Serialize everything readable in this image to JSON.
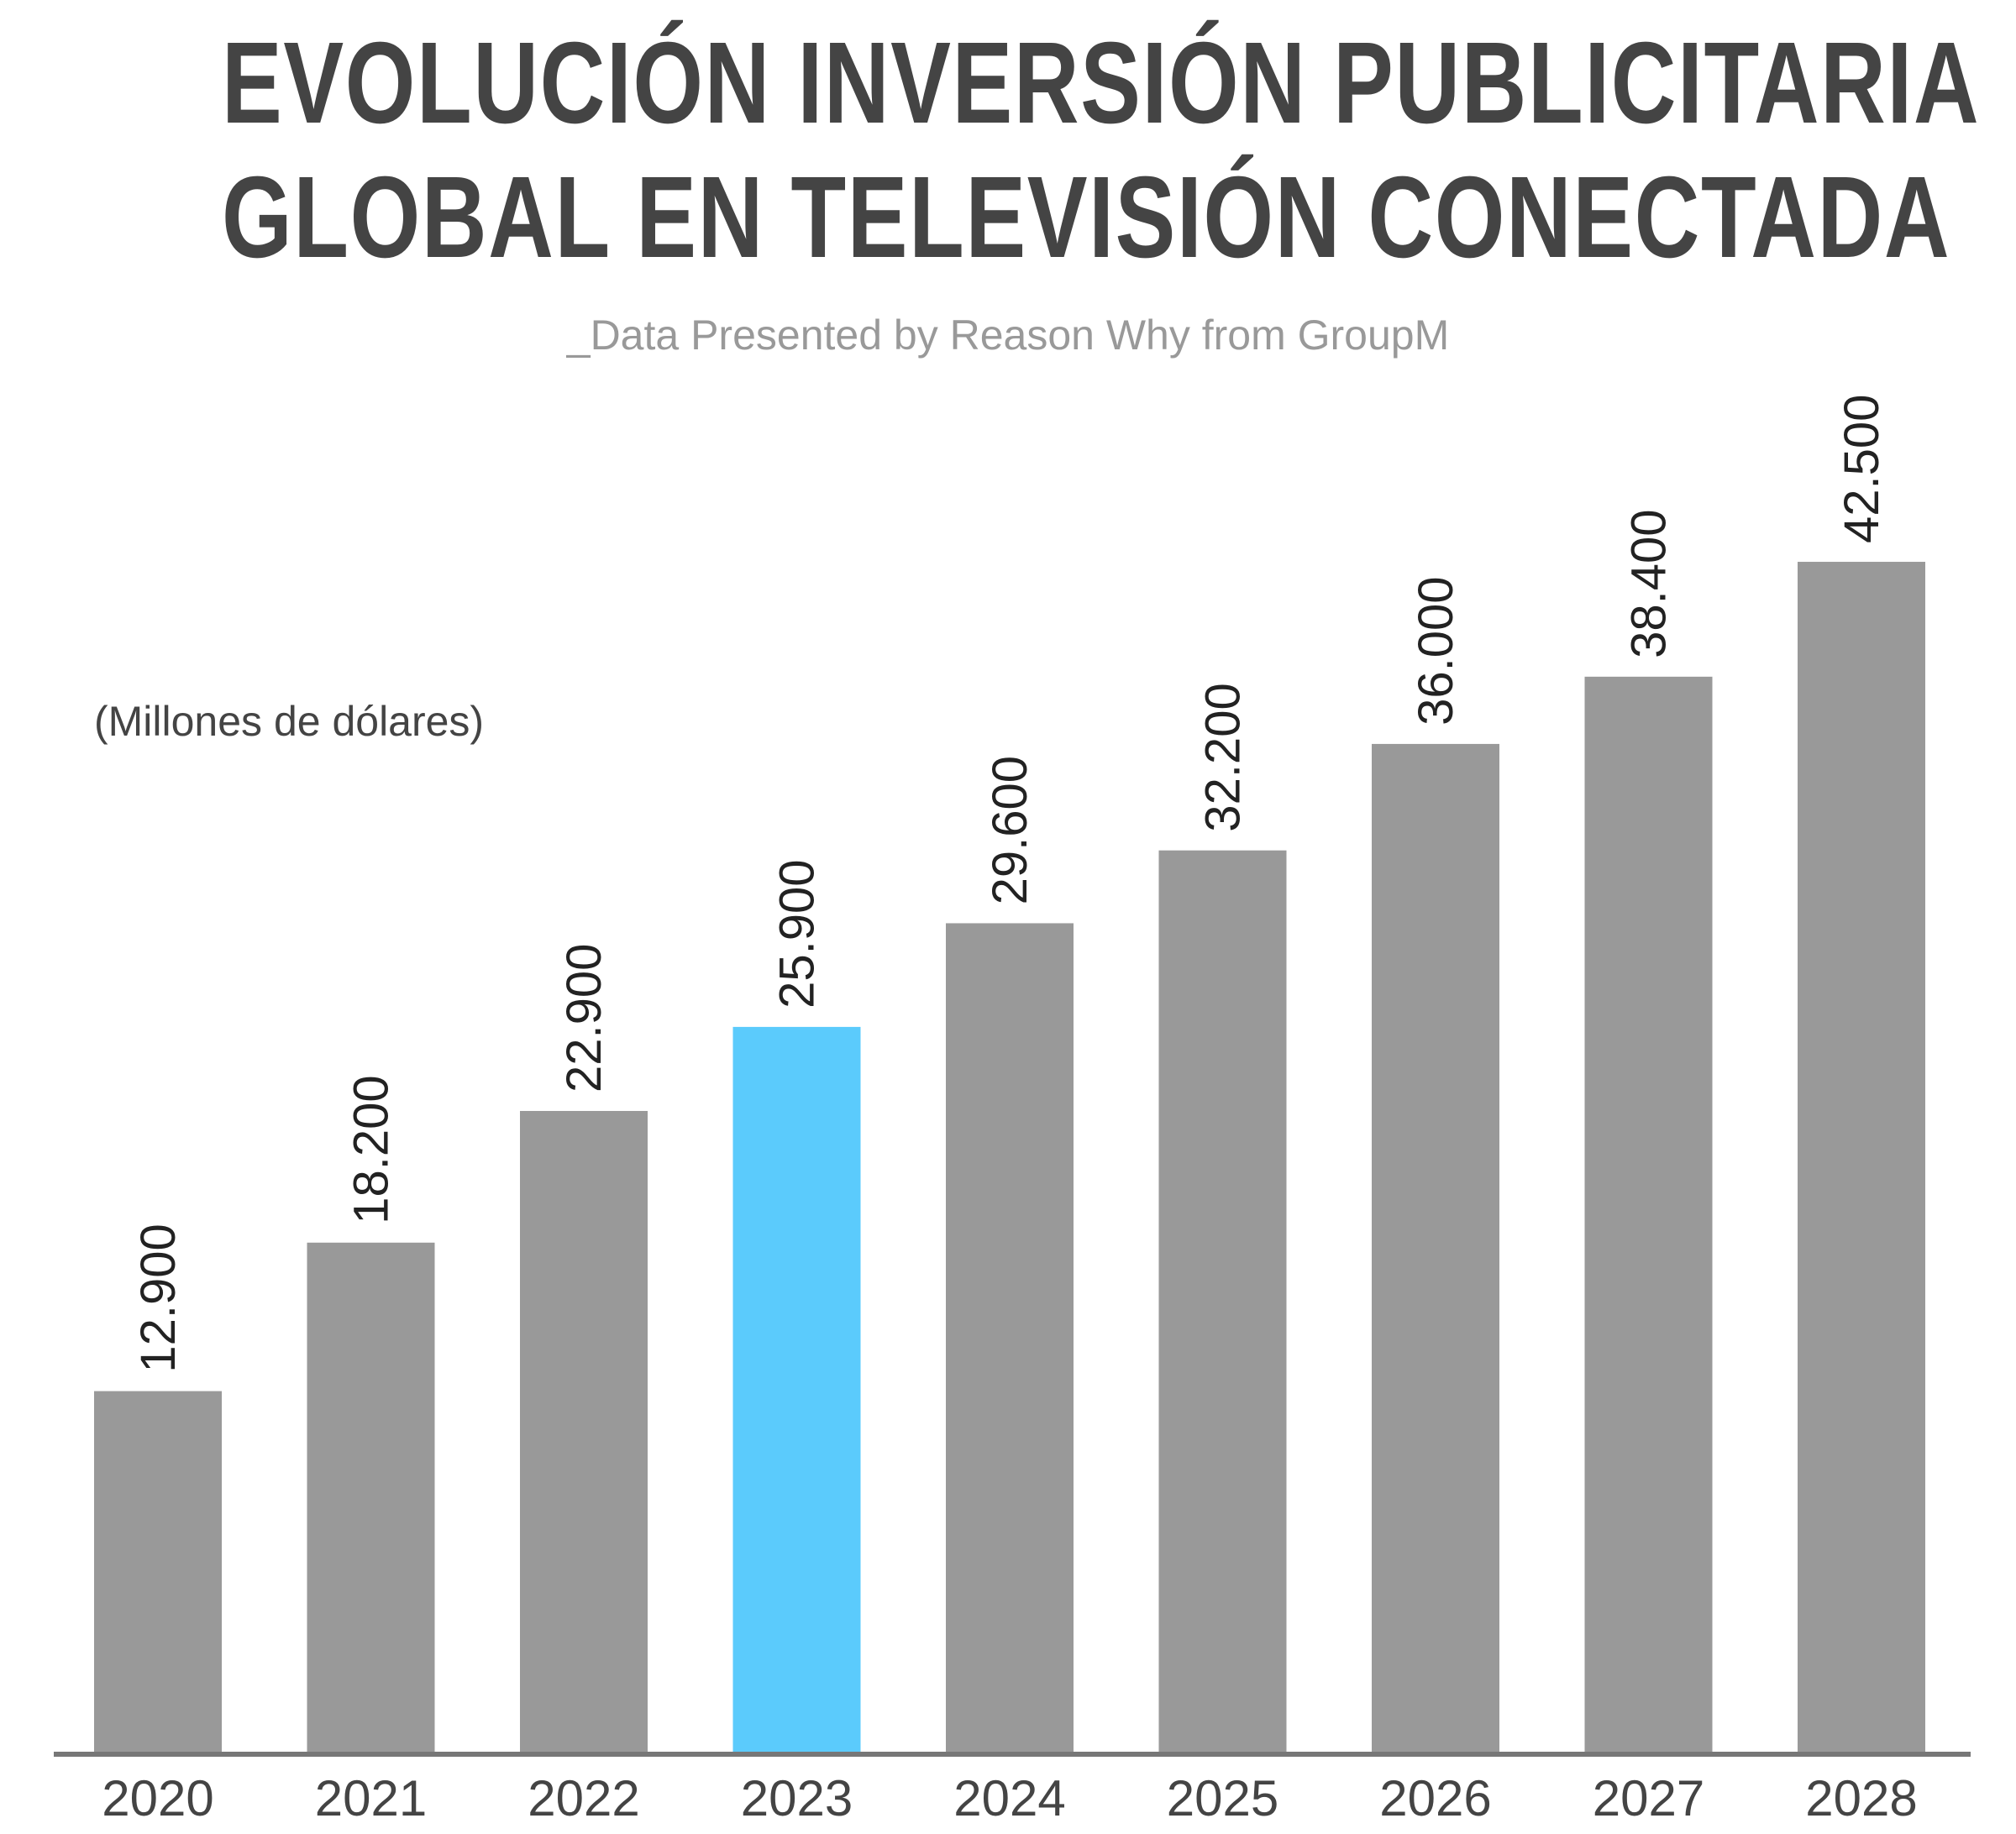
{
  "header": {
    "title_line1": "EVOLUCIÓN INVERSIÓN PUBLICITARIA",
    "title_line2": "GLOBAL EN TELEVISIÓN CONECTADA",
    "subtitle": "_Data Presented by Reason Why from GroupM"
  },
  "unit_label": "(Millones de dólares)",
  "colors": {
    "bar_default": "#999999",
    "bar_highlight": "#5BCBFC",
    "axis": "#777777"
  },
  "chart_data": {
    "type": "bar",
    "title": "EVOLUCIÓN INVERSIÓN PUBLICITARIA GLOBAL EN TELEVISIÓN CONECTADA",
    "subtitle": "_Data Presented by Reason Why from GroupM",
    "ylabel": "(Millones de dólares)",
    "xlabel": "",
    "categories": [
      "2020",
      "2021",
      "2022",
      "2023",
      "2024",
      "2025",
      "2026",
      "2027",
      "2028"
    ],
    "values": [
      12900,
      18200,
      22900,
      25900,
      29600,
      32200,
      36000,
      38400,
      42500
    ],
    "value_labels": [
      "12.900",
      "18.200",
      "22.900",
      "25.900",
      "29.600",
      "32.200",
      "36.000",
      "38.400",
      "42.500"
    ],
    "highlight_category": "2023",
    "ylim": [
      0,
      44000
    ],
    "grid": false,
    "legend": "none"
  }
}
